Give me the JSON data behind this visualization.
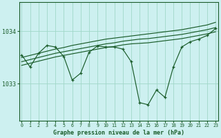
{
  "title": "Graphe pression niveau de la mer (hPa)",
  "bg_color": "#cdf0f0",
  "grid_color": "#a0d8c8",
  "line_color": "#1a5c2a",
  "x_ticks": [
    0,
    1,
    2,
    3,
    4,
    5,
    6,
    7,
    8,
    9,
    10,
    11,
    12,
    13,
    14,
    15,
    16,
    17,
    18,
    19,
    20,
    21,
    22,
    23
  ],
  "y_ticks": [
    1033,
    1034
  ],
  "ylim": [
    1032.3,
    1034.55
  ],
  "xlim": [
    -0.3,
    23.3
  ],
  "series_main": [
    1033.55,
    1033.32,
    1033.58,
    1033.73,
    1033.7,
    1033.52,
    1033.07,
    1033.2,
    1033.6,
    1033.72,
    1033.7,
    1033.7,
    1033.66,
    1033.42,
    1032.64,
    1032.6,
    1032.88,
    1032.74,
    1033.32,
    1033.7,
    1033.8,
    1033.85,
    1033.92,
    1034.05
  ],
  "trend1": [
    1033.5,
    1033.54,
    1033.58,
    1033.62,
    1033.66,
    1033.69,
    1033.73,
    1033.76,
    1033.79,
    1033.82,
    1033.85,
    1033.87,
    1033.89,
    1033.91,
    1033.93,
    1033.95,
    1033.97,
    1033.99,
    1034.01,
    1034.03,
    1034.06,
    1034.09,
    1034.12,
    1034.17
  ],
  "trend2": [
    1033.42,
    1033.46,
    1033.5,
    1033.54,
    1033.58,
    1033.61,
    1033.64,
    1033.67,
    1033.7,
    1033.73,
    1033.76,
    1033.78,
    1033.81,
    1033.83,
    1033.85,
    1033.86,
    1033.88,
    1033.9,
    1033.92,
    1033.94,
    1033.97,
    1034.0,
    1034.03,
    1034.07
  ],
  "trend3": [
    1033.35,
    1033.39,
    1033.43,
    1033.47,
    1033.51,
    1033.54,
    1033.57,
    1033.6,
    1033.63,
    1033.66,
    1033.69,
    1033.71,
    1033.74,
    1033.76,
    1033.77,
    1033.78,
    1033.8,
    1033.82,
    1033.84,
    1033.86,
    1033.89,
    1033.92,
    1033.95,
    1033.99
  ]
}
